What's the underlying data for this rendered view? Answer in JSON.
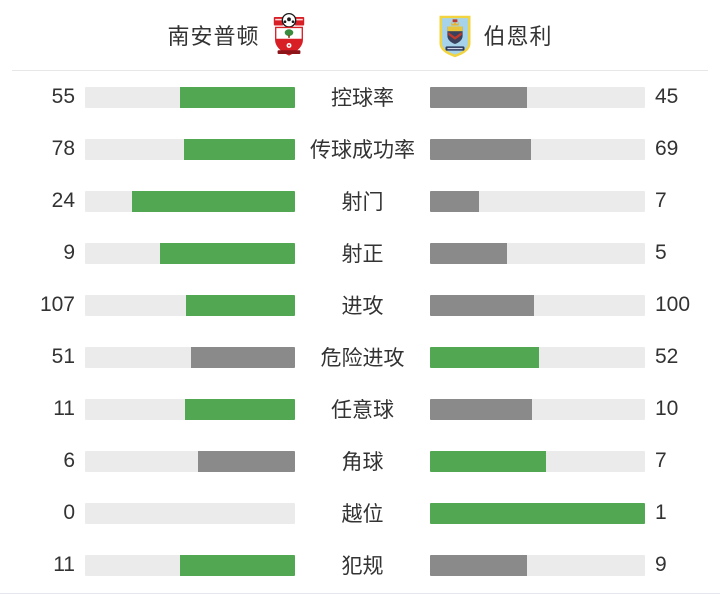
{
  "header": {
    "home_team": "南安普顿",
    "away_team": "伯恩利"
  },
  "colors": {
    "leader_green": "#52a852",
    "trailer_gray": "#8a8a8a",
    "bar_track": "#ebebeb",
    "text": "#333333",
    "divider": "#e7e7e7"
  },
  "chart_data": {
    "type": "bar",
    "subtype": "paired-horizontal-team-comparison",
    "title": "",
    "categories": [
      "控球率",
      "传球成功率",
      "射门",
      "射正",
      "进攻",
      "危险进攻",
      "任意球",
      "角球",
      "越位",
      "犯规"
    ],
    "series": [
      {
        "name": "南安普顿",
        "values": [
          55,
          78,
          24,
          9,
          107,
          51,
          11,
          6,
          0,
          11
        ]
      },
      {
        "name": "伯恩利",
        "values": [
          45,
          69,
          7,
          5,
          100,
          52,
          10,
          7,
          1,
          9
        ]
      }
    ],
    "bar_rule": "fill width = value / (home + away); team with higher value gets green fill, lower gets gray; bars grow outward from center",
    "grid": false,
    "legend_position": "header"
  }
}
